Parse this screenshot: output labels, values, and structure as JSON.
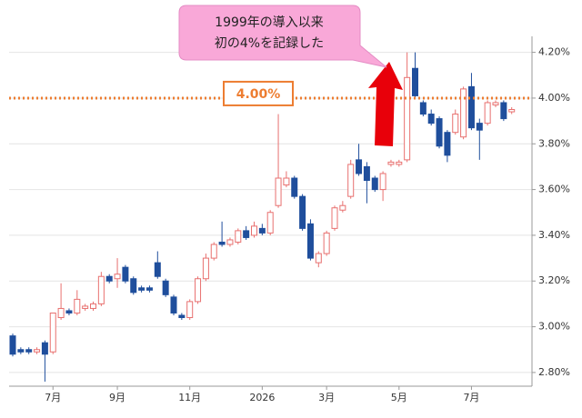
{
  "chart_data": {
    "type": "candlestick",
    "categories": [
      null,
      null,
      null,
      null,
      null,
      "7月",
      null,
      null,
      null,
      null,
      null,
      null,
      null,
      "9月",
      null,
      null,
      null,
      null,
      null,
      null,
      null,
      null,
      "11月",
      null,
      null,
      null,
      null,
      null,
      null,
      null,
      null,
      "2026",
      null,
      null,
      null,
      null,
      null,
      null,
      null,
      "3月",
      null,
      null,
      null,
      null,
      null,
      null,
      null,
      null,
      "5月",
      null,
      null,
      null,
      null,
      null,
      null,
      null,
      null,
      "7月",
      null,
      null,
      null,
      null,
      null
    ],
    "open": [
      2.96,
      2.9,
      2.9,
      2.89,
      2.93,
      2.89,
      3.04,
      3.07,
      3.06,
      3.08,
      3.08,
      3.1,
      3.22,
      3.21,
      3.26,
      3.21,
      3.17,
      3.17,
      3.28,
      3.2,
      3.13,
      3.05,
      3.04,
      3.11,
      3.21,
      3.3,
      3.37,
      3.36,
      3.37,
      3.42,
      3.4,
      3.43,
      3.41,
      3.53,
      3.62,
      3.65,
      3.57,
      3.45,
      3.28,
      3.32,
      3.43,
      3.51,
      3.57,
      3.73,
      3.7,
      3.65,
      3.6,
      3.71,
      3.71,
      3.73,
      4.13,
      3.98,
      3.93,
      3.91,
      3.85,
      3.85,
      3.83,
      4.05,
      3.89,
      3.89,
      3.97,
      3.98,
      3.94
    ],
    "high": [
      2.97,
      2.91,
      2.91,
      2.91,
      2.94,
      3.06,
      3.19,
      3.08,
      3.16,
      3.1,
      3.11,
      3.24,
      3.23,
      3.3,
      3.27,
      3.22,
      3.18,
      3.18,
      3.33,
      3.21,
      3.14,
      3.06,
      3.12,
      3.22,
      3.32,
      3.37,
      3.46,
      3.39,
      3.43,
      3.44,
      3.46,
      3.45,
      3.51,
      3.93,
      3.68,
      3.66,
      3.58,
      3.47,
      3.33,
      3.42,
      3.53,
      3.55,
      3.73,
      3.8,
      3.72,
      3.66,
      3.68,
      3.73,
      3.73,
      4.2,
      4.2,
      3.99,
      3.95,
      3.92,
      3.86,
      3.95,
      4.05,
      4.11,
      3.91,
      3.99,
      3.99,
      3.99,
      3.96
    ],
    "low": [
      2.87,
      2.88,
      2.88,
      2.88,
      2.76,
      2.88,
      3.03,
      3.05,
      3.05,
      3.07,
      3.07,
      3.09,
      3.19,
      3.17,
      3.19,
      3.14,
      3.15,
      3.15,
      3.21,
      3.13,
      3.05,
      3.03,
      3.03,
      3.1,
      3.2,
      3.29,
      3.35,
      3.35,
      3.36,
      3.38,
      3.39,
      3.4,
      3.4,
      3.52,
      3.61,
      3.56,
      3.42,
      3.29,
      3.26,
      3.31,
      3.42,
      3.5,
      3.56,
      3.66,
      3.54,
      3.59,
      3.55,
      3.7,
      3.7,
      3.72,
      4.0,
      3.92,
      3.88,
      3.78,
      3.72,
      3.84,
      3.82,
      3.86,
      3.73,
      3.88,
      3.96,
      3.9,
      3.93
    ],
    "close": [
      2.88,
      2.89,
      2.89,
      2.9,
      2.88,
      3.06,
      3.08,
      3.06,
      3.12,
      3.09,
      3.1,
      3.22,
      3.2,
      3.23,
      3.2,
      3.15,
      3.16,
      3.16,
      3.22,
      3.14,
      3.06,
      3.04,
      3.11,
      3.21,
      3.3,
      3.36,
      3.36,
      3.38,
      3.42,
      3.39,
      3.44,
      3.41,
      3.5,
      3.65,
      3.65,
      3.57,
      3.43,
      3.3,
      3.32,
      3.41,
      3.52,
      3.53,
      3.71,
      3.67,
      3.64,
      3.6,
      3.67,
      3.72,
      3.72,
      4.09,
      4.01,
      3.93,
      3.89,
      3.79,
      3.75,
      3.93,
      4.04,
      3.87,
      3.86,
      3.98,
      3.98,
      3.91,
      3.95
    ],
    "up_color": "#e8706f",
    "down_color": "#1f4e9c",
    "ylim": [
      2.74,
      4.27
    ],
    "yticks": [
      {
        "value": 2.8,
        "label": "2.80%"
      },
      {
        "value": 3.0,
        "label": "3.00%"
      },
      {
        "value": 3.2,
        "label": "3.20%"
      },
      {
        "value": 3.4,
        "label": "3.40%"
      },
      {
        "value": 3.6,
        "label": "3.60%"
      },
      {
        "value": 3.8,
        "label": "3.80%"
      },
      {
        "value": 4.0,
        "label": "4.00%"
      },
      {
        "value": 4.2,
        "label": "4.20%"
      }
    ],
    "grid": true,
    "reference_line": {
      "value": 4.0,
      "label": "4.00%",
      "color": "#ed7d31"
    },
    "annotation": {
      "lines": [
        "1999年の導入以来",
        "初の4%を記録した"
      ]
    }
  }
}
